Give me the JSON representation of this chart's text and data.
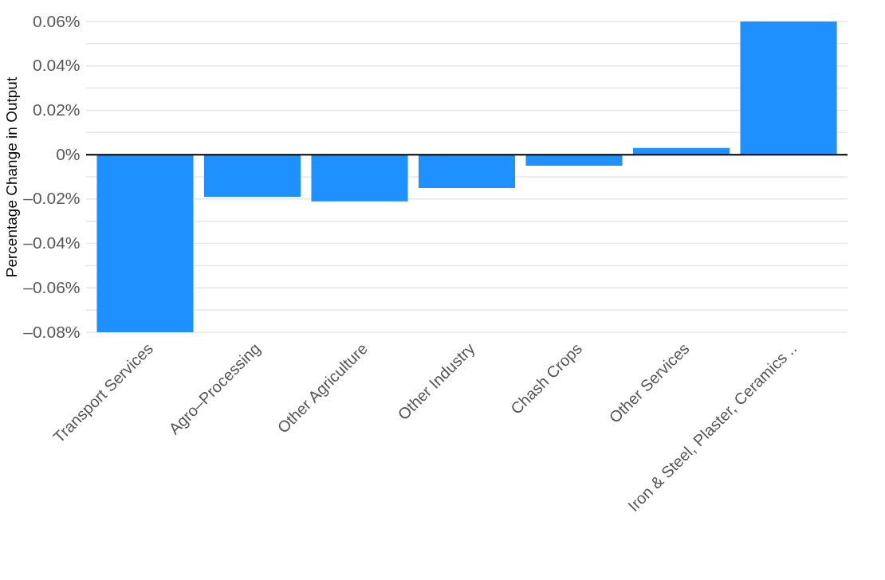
{
  "chart_data": {
    "type": "bar",
    "ylabel": "Percentage Change in Output",
    "categories": [
      "Transport Services",
      "Agro–Processing",
      "Other Agriculture",
      "Other Industry",
      "Chash Crops",
      "Other Services",
      "Iron & Steel, Plaster, Ceramics .."
    ],
    "values": [
      -0.08,
      -0.019,
      -0.021,
      -0.015,
      -0.005,
      0.003,
      0.06
    ],
    "color": "#1e90ff",
    "ylim": [
      -0.08,
      0.06
    ],
    "yticks": [
      {
        "value": -0.08,
        "label": "–0.08%"
      },
      {
        "value": -0.07,
        "label": null
      },
      {
        "value": -0.06,
        "label": "–0.06%"
      },
      {
        "value": -0.05,
        "label": null
      },
      {
        "value": -0.04,
        "label": "–0.04%"
      },
      {
        "value": -0.03,
        "label": null
      },
      {
        "value": -0.02,
        "label": "–0.02%"
      },
      {
        "value": -0.01,
        "label": null
      },
      {
        "value": 0,
        "label": "0%"
      },
      {
        "value": 0.01,
        "label": null
      },
      {
        "value": 0.02,
        "label": "0.02%"
      },
      {
        "value": 0.03,
        "label": null
      },
      {
        "value": 0.04,
        "label": "0.04%"
      },
      {
        "value": 0.05,
        "label": null
      },
      {
        "value": 0.06,
        "label": "0.06%"
      }
    ],
    "grid": "y",
    "ref_lines": [
      {
        "axis": "y",
        "value": 0,
        "color": "#000000"
      }
    ]
  }
}
